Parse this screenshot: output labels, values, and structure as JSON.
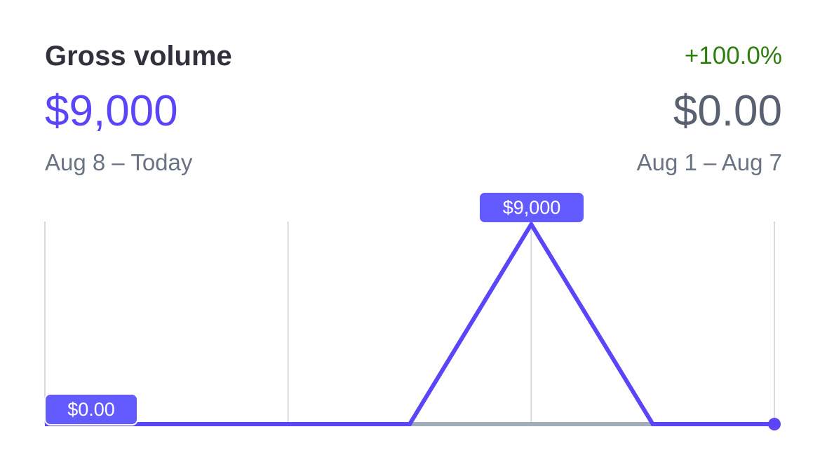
{
  "widget": {
    "title": "Gross volume",
    "change_percent": "+100.0%",
    "current": {
      "value": "$9,000",
      "range": "Aug 8 – Today"
    },
    "previous": {
      "value": "$0.00",
      "range": "Aug 1 – Aug 7"
    },
    "tooltips": {
      "peak": "$9,000",
      "start": "$0.00"
    }
  },
  "colors": {
    "accent": "#5b45f8",
    "positive": "#2e7d0f",
    "previous_series": "#a3acba",
    "gridline": "#d5dbe1"
  },
  "chart_data": {
    "type": "line",
    "x_count": 7,
    "ylim": [
      0,
      9000
    ],
    "grid": "vertical",
    "series": [
      {
        "values": [
          0,
          0,
          0,
          0,
          9000,
          0,
          0
        ]
      },
      {
        "values": [
          0,
          0,
          0,
          0,
          0,
          0,
          0
        ]
      }
    ]
  }
}
